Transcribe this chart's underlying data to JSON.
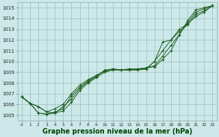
{
  "bg_color": "#cce8e8",
  "grid_color": "#99bbbb",
  "line_color": "#1a5c1a",
  "xlabel": "Graphe pression niveau de la mer (hPa)",
  "xlabel_color": "#004400",
  "xlabel_fontsize": 7.0,
  "ylim": [
    1004.5,
    1015.5
  ],
  "xlim": [
    -0.5,
    23.5
  ],
  "yticks": [
    1005,
    1006,
    1007,
    1008,
    1009,
    1010,
    1011,
    1012,
    1013,
    1014,
    1015
  ],
  "xticks": [
    0,
    1,
    2,
    3,
    4,
    5,
    6,
    7,
    8,
    9,
    10,
    11,
    12,
    13,
    14,
    15,
    16,
    17,
    18,
    19,
    20,
    21,
    22,
    23
  ],
  "series_x": [
    [
      0,
      1,
      2,
      3,
      4,
      5,
      6,
      7,
      8,
      9,
      10,
      11,
      12,
      13,
      14,
      15,
      16,
      17,
      18,
      19,
      20,
      21,
      22,
      23
    ],
    [
      0,
      1,
      2,
      3,
      4,
      5,
      6,
      7,
      8,
      9,
      10,
      11,
      12,
      13,
      14,
      15,
      16,
      17,
      18,
      19,
      20,
      21,
      22,
      23
    ],
    [
      0,
      1,
      2,
      3,
      4,
      5,
      6,
      7,
      8,
      9,
      10,
      11,
      12,
      13,
      14,
      15,
      16,
      17,
      18,
      19,
      20,
      21,
      22,
      23
    ],
    [
      0,
      1,
      2,
      3,
      4,
      5,
      6,
      7,
      8,
      9,
      10,
      11,
      12,
      13,
      14,
      15,
      16,
      17,
      18,
      19,
      20,
      21,
      22,
      23
    ]
  ],
  "series": [
    [
      1006.7,
      1006.1,
      1005.8,
      1005.3,
      1005.2,
      1005.8,
      1006.5,
      1007.5,
      1008.1,
      1008.6,
      1009.2,
      1009.3,
      1009.2,
      1009.2,
      1009.3,
      1009.3,
      1010.0,
      1011.8,
      1012.0,
      1012.8,
      1013.4,
      1014.4,
      1014.7,
      1015.2
    ],
    [
      1006.7,
      1006.1,
      1005.8,
      1005.3,
      1005.6,
      1006.0,
      1007.0,
      1007.8,
      1008.3,
      1008.7,
      1009.1,
      1009.3,
      1009.2,
      1009.3,
      1009.3,
      1009.4,
      1009.5,
      1010.2,
      1011.0,
      1012.5,
      1013.8,
      1014.8,
      1015.0,
      1015.2
    ],
    [
      1006.7,
      1006.1,
      1005.2,
      1005.1,
      1005.2,
      1005.4,
      1006.2,
      1007.3,
      1008.0,
      1008.5,
      1009.0,
      1009.2,
      1009.2,
      1009.2,
      1009.2,
      1009.3,
      1010.0,
      1011.0,
      1012.0,
      1013.0,
      1013.5,
      1014.2,
      1014.6,
      1015.2
    ],
    [
      1006.7,
      1006.1,
      1005.2,
      1005.1,
      1005.3,
      1005.6,
      1006.8,
      1007.6,
      1008.2,
      1008.7,
      1009.1,
      1009.3,
      1009.2,
      1009.3,
      1009.3,
      1009.4,
      1009.6,
      1010.5,
      1011.5,
      1012.5,
      1013.6,
      1014.6,
      1014.9,
      1015.2
    ]
  ]
}
